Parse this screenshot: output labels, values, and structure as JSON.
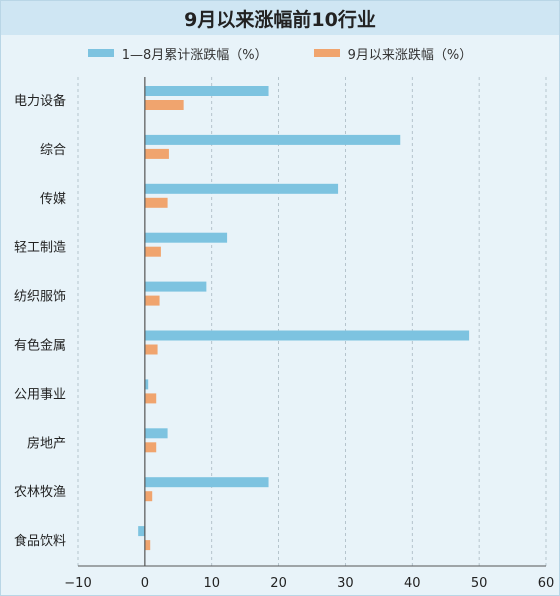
{
  "chart_data": {
    "type": "bar",
    "orientation": "horizontal",
    "title": "9月以来涨幅前10行业",
    "categories": [
      "电力设备",
      "综合",
      "传媒",
      "轻工制造",
      "纺织服饰",
      "有色金属",
      "公用事业",
      "房地产",
      "农林牧渔",
      "食品饮料"
    ],
    "series": [
      {
        "name": "1—8月累计涨跌幅（%）",
        "color": "#7dc3e0",
        "values": [
          18.5,
          38.2,
          28.9,
          12.3,
          9.2,
          48.5,
          0.5,
          3.4,
          18.5,
          -1.0
        ]
      },
      {
        "name": "9月以来涨跌幅（%）",
        "color": "#f0a46e",
        "values": [
          5.8,
          3.6,
          3.4,
          2.4,
          2.2,
          1.9,
          1.7,
          1.7,
          1.1,
          0.8
        ]
      }
    ],
    "xlim": [
      -10,
      60
    ],
    "xticks": [
      -10,
      0,
      10,
      20,
      30,
      40,
      50,
      60
    ],
    "xtick_labels": [
      "−10",
      "0",
      "10",
      "20",
      "30",
      "40",
      "50",
      "60"
    ],
    "grid": "vertical-dashed",
    "legend_position": "top"
  }
}
